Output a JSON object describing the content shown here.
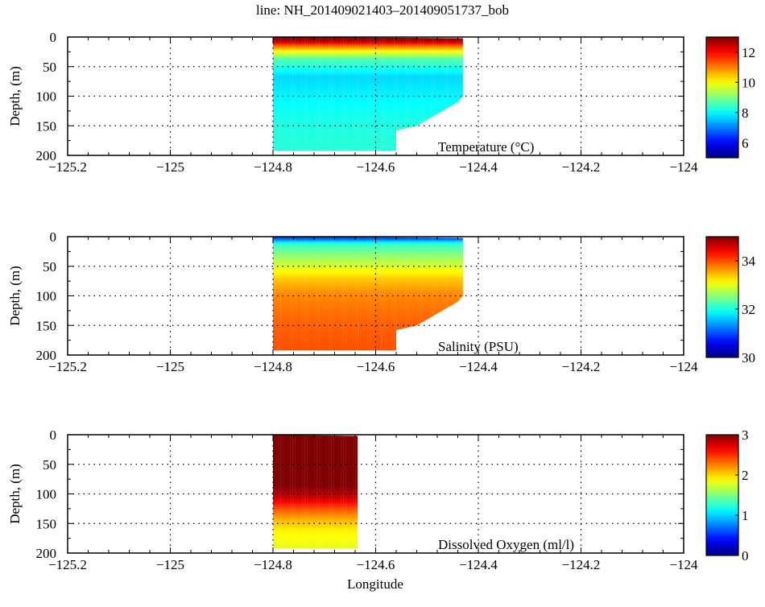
{
  "title": "line: NH_201409021403–201409051737_bob",
  "chart_data": [
    {
      "type": "heatmap",
      "label": "Temperature (°C)",
      "ylabel": "Depth, (m)",
      "xlabel": "",
      "xlim": [
        -125.2,
        -124
      ],
      "ylim": [
        200,
        0
      ],
      "xticks": [
        "−125.2",
        "−125",
        "−124.8",
        "−124.6",
        "−124.4",
        "−124.2",
        "−124"
      ],
      "yticks": [
        "0",
        "50",
        "100",
        "150",
        "200"
      ],
      "grid": true,
      "colorbar": {
        "range": [
          5,
          13
        ],
        "ticks": [
          "6",
          "8",
          "10",
          "12"
        ],
        "colormap": "jet"
      },
      "coverage": {
        "lon": [
          -124.8,
          -124.56,
          -124.56,
          -124.52,
          -124.48,
          -124.44,
          -124.43
        ],
        "max_depth": [
          192,
          192,
          158,
          150,
          130,
          110,
          100
        ]
      },
      "profile": {
        "depth": [
          0,
          8,
          15,
          25,
          40,
          70,
          100,
          150,
          200
        ],
        "value": [
          13,
          12.6,
          11.3,
          10,
          8.6,
          7.7,
          7.9,
          8.2,
          8.3
        ]
      }
    },
    {
      "type": "heatmap",
      "label": "Salinity (PSU)",
      "ylabel": "Depth, (m)",
      "xlabel": "",
      "xlim": [
        -125.2,
        -124
      ],
      "ylim": [
        200,
        0
      ],
      "xticks": [
        "−125.2",
        "−125",
        "−124.8",
        "−124.6",
        "−124.4",
        "−124.2",
        "−124"
      ],
      "yticks": [
        "0",
        "50",
        "100",
        "150",
        "200"
      ],
      "grid": true,
      "colorbar": {
        "range": [
          30,
          35
        ],
        "ticks": [
          "30",
          "32",
          "34"
        ],
        "colormap": "jet"
      },
      "coverage": {
        "lon": [
          -124.8,
          -124.56,
          -124.56,
          -124.52,
          -124.48,
          -124.44,
          -124.43
        ],
        "max_depth": [
          192,
          192,
          158,
          150,
          130,
          110,
          100
        ]
      },
      "profile": {
        "depth": [
          0,
          5,
          12,
          30,
          50,
          75,
          100,
          150,
          200
        ],
        "value": [
          30.8,
          31.2,
          32.1,
          32.5,
          32.9,
          33.4,
          33.7,
          33.9,
          34.0
        ]
      }
    },
    {
      "type": "heatmap",
      "label": "Dissolved Oxygen (ml/l)",
      "ylabel": "Depth, (m)",
      "xlabel": "Longitude",
      "xlim": [
        -125.2,
        -124
      ],
      "ylim": [
        200,
        0
      ],
      "xticks": [
        "−125.2",
        "−125",
        "−124.8",
        "−124.6",
        "−124.4",
        "−124.2",
        "−124"
      ],
      "yticks": [
        "0",
        "50",
        "100",
        "150",
        "200"
      ],
      "grid": true,
      "colorbar": {
        "range": [
          0,
          3
        ],
        "ticks": [
          "0",
          "1",
          "2",
          "3"
        ],
        "colormap": "jet"
      },
      "coverage": {
        "lon": [
          -124.8,
          -124.635
        ],
        "max_depth": [
          192,
          192
        ]
      },
      "profile": {
        "depth": [
          0,
          90,
          110,
          130,
          150,
          170,
          200
        ],
        "value": [
          3,
          3,
          2.8,
          2.4,
          2.1,
          1.9,
          1.8
        ]
      }
    }
  ]
}
